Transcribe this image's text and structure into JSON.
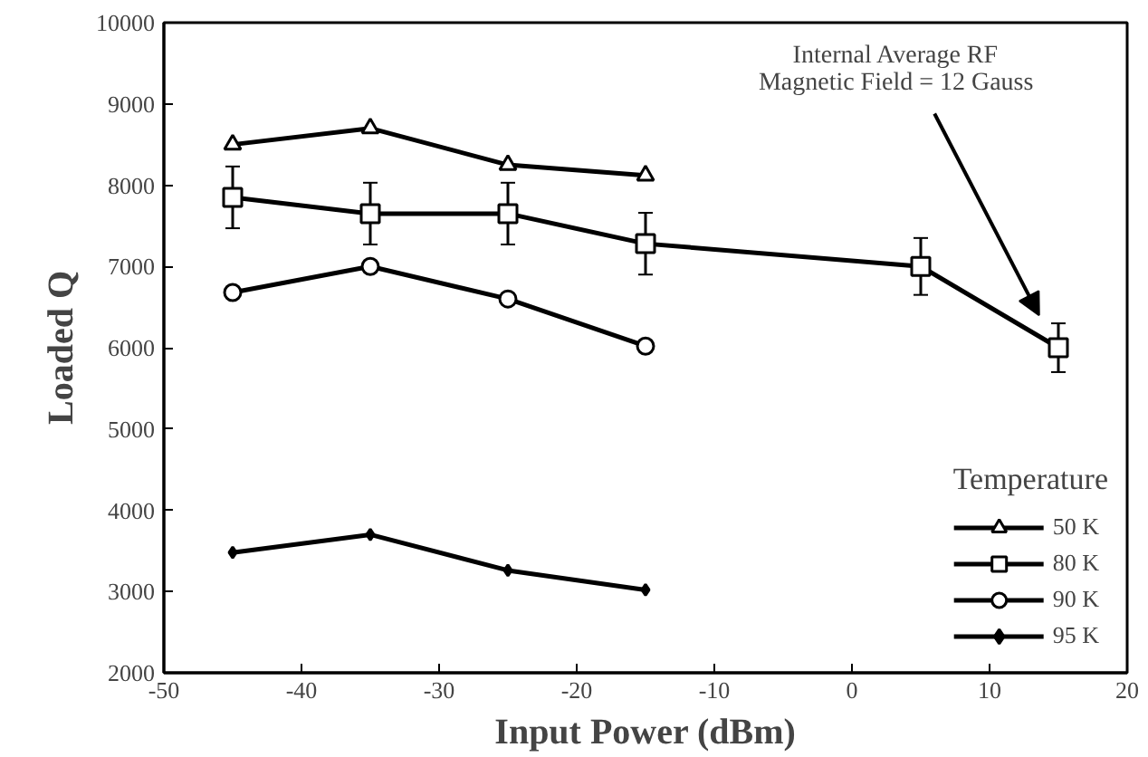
{
  "chart_data": {
    "type": "line",
    "xlabel": "Input Power (dBm)",
    "ylabel": "Loaded Q",
    "legend_title": "Temperature",
    "legend": "bottom right",
    "grid": false,
    "xlim": [
      -50,
      20
    ],
    "xticks": [
      -50,
      -40,
      -30,
      -20,
      -10,
      0,
      10,
      20
    ],
    "ylim": [
      2000,
      10000
    ],
    "yticks": [
      2000,
      3000,
      4000,
      5000,
      6000,
      7000,
      8000,
      9000,
      10000
    ],
    "annotations": [
      "Internal Average RF\nMagnetic Field = 12 Gauss"
    ],
    "series": [
      {
        "name": "50 K",
        "color": "#000000",
        "marker": "triangle",
        "x": [
          -45,
          -35,
          -25,
          -15
        ],
        "values": [
          8500,
          8700,
          8250,
          8120
        ]
      },
      {
        "name": "80 K",
        "color": "#000000",
        "marker": "square",
        "x": [
          -45,
          -35,
          -25,
          -15,
          5,
          15
        ],
        "values": [
          7850,
          7650,
          7650,
          7280,
          7000,
          6000
        ],
        "errors": [
          380,
          380,
          380,
          380,
          350,
          300
        ]
      },
      {
        "name": "90 K",
        "color": "#000000",
        "marker": "circle",
        "x": [
          -45,
          -35,
          -25,
          -15
        ],
        "values": [
          6680,
          7000,
          6600,
          6020
        ]
      },
      {
        "name": "95 K",
        "color": "#000000",
        "marker": "diamond",
        "x": [
          -45,
          -35,
          -25,
          -15
        ],
        "values": [
          3480,
          3700,
          3260,
          3020
        ]
      }
    ]
  }
}
